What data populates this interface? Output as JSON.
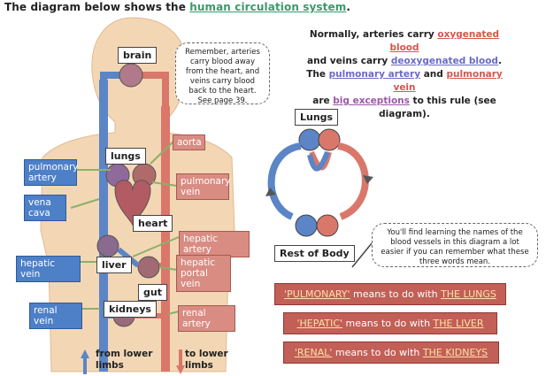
{
  "heading": {
    "prefix": "The diagram below shows the ",
    "link": "human circulation system",
    "suffix": "."
  },
  "body_labels": {
    "brain": "brain",
    "lungs": "lungs",
    "heart": "heart",
    "liver": "liver",
    "gut": "gut",
    "kidneys": "kidneys"
  },
  "left_labels": {
    "pulmonary_artery": "pulmonary artery",
    "vena_cava": "vena cava",
    "hepatic_vein": "hepatic vein",
    "renal_vein": "renal vein"
  },
  "right_labels": {
    "aorta": "aorta",
    "pulmonary_vein": "pulmonary vein",
    "hepatic_artery": "hepatic artery",
    "hepatic_portal_vein": "hepatic portal vein",
    "renal_artery": "renal artery"
  },
  "lower": {
    "from": "from lower limbs",
    "to": "to lower limbs"
  },
  "note_top": "Remember, arteries carry blood away from the heart, and veins carry blood back to the heart.  See page 39.",
  "callout": {
    "l1a": "Normally, arteries carry ",
    "l1b": "oxygenated blood",
    "l2a": "and veins carry ",
    "l2b": "deoxygenated blood",
    "l2c": ".",
    "l3a": "The ",
    "l3b": "pulmonary artery",
    "l3c": " and ",
    "l3d": "pulmonary vein",
    "l4a": "are ",
    "l4b": "big exceptions",
    "l4c": " to this rule (see diagram)."
  },
  "mini": {
    "lungs": "Lungs",
    "rest": "Rest of Body"
  },
  "note_bottom": "You'll find learning the names of the blood vessels in this diagram a lot easier if you can remember what these three words mean.",
  "meanings": [
    {
      "q": "'PULMONARY'",
      "mid": " means to do with ",
      "t": "THE LUNGS"
    },
    {
      "q": "'HEPATIC'",
      "mid": " means to do with ",
      "t": "THE LIVER"
    },
    {
      "q": "'RENAL'",
      "mid": " means to do with ",
      "t": "THE KIDNEYS"
    }
  ],
  "colors": {
    "artery": "#d9776b",
    "vein": "#5b85c6",
    "skin": "#f3d7b5",
    "banner": "#c25f57"
  }
}
